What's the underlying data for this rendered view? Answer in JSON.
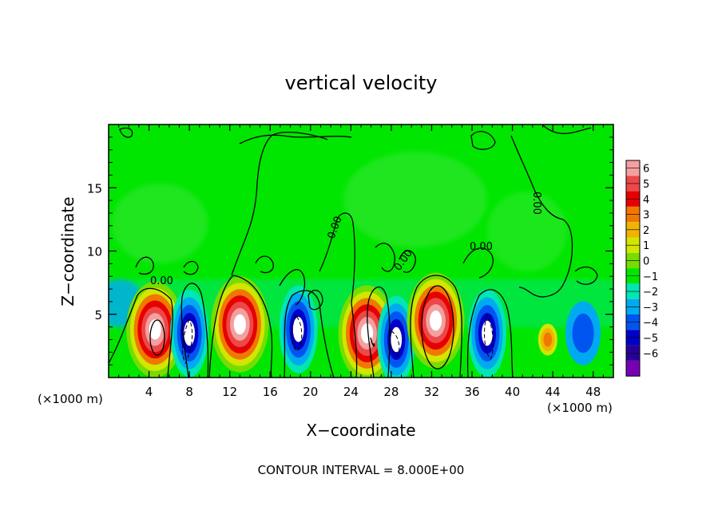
{
  "chart_data": {
    "type": "heatmap",
    "title": "vertical velocity",
    "xlabel": "X−coordinate",
    "ylabel": "Z−coordinate",
    "x_unit_left": "(×1000 m)",
    "x_unit_right": "(×1000 m)",
    "xlim": [
      0,
      50
    ],
    "ylim": [
      0,
      20
    ],
    "x_ticks": [
      4,
      8,
      12,
      16,
      20,
      24,
      28,
      32,
      36,
      40,
      44,
      48
    ],
    "y_ticks": [
      5,
      10,
      15
    ],
    "footer": "CONTOUR INTERVAL = 8.000E+00",
    "contour_labels": [
      "0.00",
      "0.00",
      "0.00",
      "0.00",
      "0.00"
    ],
    "colorbar": {
      "levels": [
        6,
        5,
        4,
        3,
        2,
        1,
        0,
        -1,
        -2,
        -3,
        -4,
        -5,
        -6
      ],
      "labels": [
        "6",
        "5",
        "4",
        "3",
        "2",
        "1",
        "0",
        "−1",
        "−2",
        "−3",
        "−4",
        "−5",
        "−6"
      ],
      "colors": [
        "#f4a0a0",
        "#ec4848",
        "#e60000",
        "#f07800",
        "#f0b400",
        "#d2e600",
        "#78dc00",
        "#00e600",
        "#00e6b4",
        "#00aaf0",
        "#0055f0",
        "#0000c8",
        "#280096",
        "#7800b4"
      ]
    },
    "cells": [
      {
        "x": 4.6,
        "z": 3.8,
        "w": "strong_up"
      },
      {
        "x": 8.0,
        "z": 3.5,
        "w": "strong_down"
      },
      {
        "x": 13.0,
        "z": 4.2,
        "w": "strong_up"
      },
      {
        "x": 18.8,
        "z": 3.8,
        "w": "strong_down"
      },
      {
        "x": 25.6,
        "z": 3.5,
        "w": "strong_up"
      },
      {
        "x": 28.5,
        "z": 3.0,
        "w": "strong_down"
      },
      {
        "x": 32.4,
        "z": 4.5,
        "w": "strong_up"
      },
      {
        "x": 37.5,
        "z": 3.5,
        "w": "strong_down"
      },
      {
        "x": 43.5,
        "z": 3.0,
        "w": "weak_up"
      },
      {
        "x": 47.0,
        "z": 3.5,
        "w": "weak_down"
      }
    ]
  }
}
